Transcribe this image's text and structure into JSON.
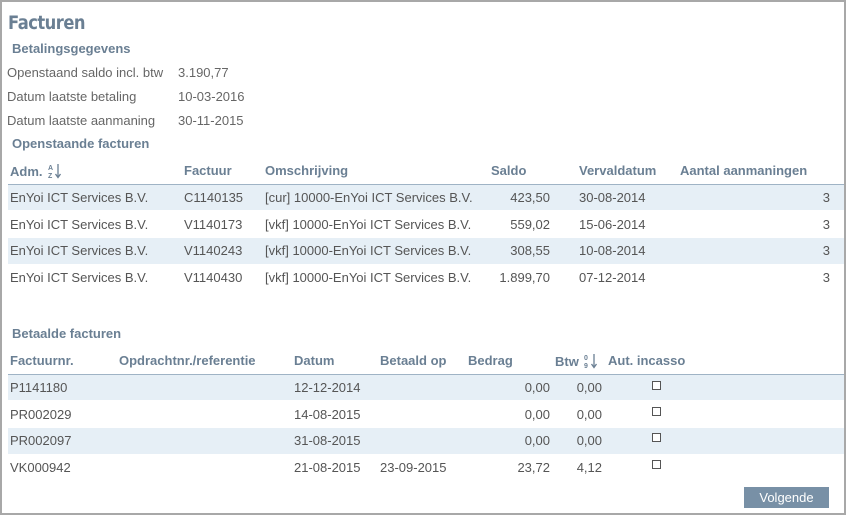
{
  "page": {
    "title": "Facturen"
  },
  "payment_info": {
    "title": "Betalingsgegevens",
    "rows": [
      {
        "label": "Openstaand saldo incl. btw",
        "value": "3.190,77"
      },
      {
        "label": "Datum laatste betaling",
        "value": "10-03-2016"
      },
      {
        "label": "Datum laatste aanmaning",
        "value": "30-11-2015"
      }
    ]
  },
  "open_invoices": {
    "title": "Openstaande facturen",
    "headers": {
      "adm": "Adm.",
      "factuur": "Factuur",
      "omschrijving": "Omschrijving",
      "saldo": "Saldo",
      "vervaldatum": "Vervaldatum",
      "aanmaningen": "Aantal aanmaningen"
    },
    "sort_icon": "sort-alpha-icon",
    "rows": [
      {
        "adm": "EnYoi ICT Services B.V.",
        "factuur": "C1140135",
        "omschrijving": "[cur] 10000-EnYoi ICT Services B.V.",
        "saldo": "423,50",
        "vervaldatum": "30-08-2014",
        "aanmaningen": "3"
      },
      {
        "adm": "EnYoi ICT Services B.V.",
        "factuur": "V1140173",
        "omschrijving": "[vkf] 10000-EnYoi ICT Services B.V.",
        "saldo": "559,02",
        "vervaldatum": "15-06-2014",
        "aanmaningen": "3"
      },
      {
        "adm": "EnYoi ICT Services B.V.",
        "factuur": "V1140243",
        "omschrijving": "[vkf] 10000-EnYoi ICT Services B.V.",
        "saldo": "308,55",
        "vervaldatum": "10-08-2014",
        "aanmaningen": "3"
      },
      {
        "adm": "EnYoi ICT Services B.V.",
        "factuur": "V1140430",
        "omschrijving": "[vkf] 10000-EnYoi ICT Services B.V.",
        "saldo": "1.899,70",
        "vervaldatum": "07-12-2014",
        "aanmaningen": "3"
      }
    ]
  },
  "paid_invoices": {
    "title": "Betaalde facturen",
    "headers": {
      "factuurnr": "Factuurnr.",
      "opdracht": "Opdrachtnr./referentie",
      "datum": "Datum",
      "betaald_op": "Betaald op",
      "bedrag": "Bedrag",
      "btw": "Btw",
      "incasso": "Aut. incasso"
    },
    "sort_icon": "sort-numeric-icon",
    "rows": [
      {
        "factuurnr": "P1141180",
        "opdracht": "",
        "datum": "12-12-2014",
        "betaald_op": "",
        "bedrag": "0,00",
        "btw": "0,00",
        "incasso": false
      },
      {
        "factuurnr": "PR002029",
        "opdracht": "",
        "datum": "14-08-2015",
        "betaald_op": "",
        "bedrag": "0,00",
        "btw": "0,00",
        "incasso": false
      },
      {
        "factuurnr": "PR002097",
        "opdracht": "",
        "datum": "31-08-2015",
        "betaald_op": "",
        "bedrag": "0,00",
        "btw": "0,00",
        "incasso": false
      },
      {
        "factuurnr": "VK000942",
        "opdracht": "",
        "datum": "21-08-2015",
        "betaald_op": "23-09-2015",
        "bedrag": "23,72",
        "btw": "4,12",
        "incasso": false
      }
    ]
  },
  "footer": {
    "next_label": "Volgende"
  },
  "colors": {
    "accent": "#6a7f93",
    "row_shade": "#e6eff6",
    "button": "#7890a6"
  }
}
